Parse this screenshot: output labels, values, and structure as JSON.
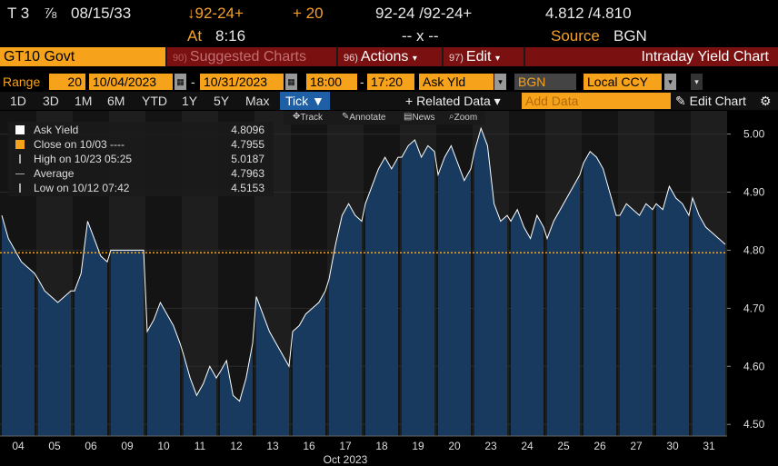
{
  "header": {
    "ticker_prefix": "T 3",
    "coupon_frac": "⅞",
    "maturity": "08/15/33",
    "price_change": "↓92-24+",
    "change_ticks": "+ 20",
    "bid_ask_price": "92-24 /92-24+",
    "bid_ask_yield": "4.812 /4.810",
    "time_label": "At",
    "time": "8:16",
    "spread": "-- x --",
    "source_label": "Source",
    "source": "BGN"
  },
  "titlebar": {
    "security": "GT10 Govt",
    "suggested_num": "90)",
    "suggested": "Suggested Charts",
    "actions_num": "96)",
    "actions": "Actions",
    "edit_num": "97)",
    "edit": "Edit",
    "chart_title": "Intraday Yield Chart"
  },
  "range_bar": {
    "range_label": "Range",
    "interval": "20",
    "start_date": "10/04/2023",
    "end_date": "10/31/2023",
    "start_time": "18:00",
    "end_time": "17:20",
    "field": "Ask Yld",
    "source": "BGN",
    "currency": "Local CCY"
  },
  "period_bar": {
    "periods": [
      "1D",
      "3D",
      "1M",
      "6M",
      "YTD",
      "1Y",
      "5Y",
      "Max"
    ],
    "tick": "Tick ▼",
    "related": "+ Related Data ▾",
    "add_data": "Add Data",
    "edit_chart": "✎ Edit Chart",
    "gear": "⚙"
  },
  "toolbar": {
    "track": "Track",
    "annotate": "Annotate",
    "news": "News",
    "zoom": "Zoom"
  },
  "legend": {
    "ask_yield": {
      "name": "Ask Yield",
      "value": "4.8096"
    },
    "close": {
      "name": "Close on 10/03 ----",
      "value": "4.7955"
    },
    "high": {
      "name": "High on 10/23 05:25",
      "value": "5.0187"
    },
    "average": {
      "name": "Average",
      "value": "4.7963"
    },
    "low": {
      "name": "Low on 10/12 07:42",
      "value": "4.5153"
    }
  },
  "colors": {
    "accent": "#f7a21b",
    "area_fill": "#173a5e",
    "line": "#ffffff",
    "title_bg": "#7a1010",
    "tick_button": "#1f5fa5"
  },
  "chart_data": {
    "type": "area",
    "title": "Intraday Yield Chart",
    "ylabel": "",
    "xlabel": "Oct 2023",
    "ylim": [
      4.48,
      5.04
    ],
    "yticks": [
      "4.50",
      "4.60",
      "4.70",
      "4.80",
      "4.90",
      "5.00"
    ],
    "last_value_label": "4.8096",
    "reference_line": {
      "name": "Close on 10/03",
      "value": 4.7955
    },
    "categories": [
      "04",
      "05",
      "06",
      "09",
      "10",
      "11",
      "12",
      "13",
      "16",
      "17",
      "18",
      "19",
      "20",
      "23",
      "24",
      "25",
      "26",
      "27",
      "30",
      "31"
    ],
    "x_title": "Oct 2023",
    "series": [
      {
        "name": "Ask Yield",
        "values_by_day": [
          [
            4.86,
            4.82,
            4.8,
            4.78,
            4.77,
            4.76
          ],
          [
            4.75,
            4.73,
            4.72,
            4.71,
            4.72,
            4.73
          ],
          [
            4.73,
            4.76,
            4.85,
            4.82,
            4.79,
            4.78
          ],
          [
            4.8,
            4.8,
            4.8,
            4.8,
            4.8,
            4.8
          ],
          [
            4.66,
            4.68,
            4.71,
            4.69,
            4.67,
            4.64
          ],
          [
            4.62,
            4.58,
            4.55,
            4.57,
            4.6,
            4.58
          ],
          [
            4.59,
            4.61,
            4.55,
            4.54,
            4.58,
            4.64
          ],
          [
            4.72,
            4.69,
            4.66,
            4.64,
            4.62,
            4.6
          ],
          [
            4.66,
            4.67,
            4.69,
            4.7,
            4.71,
            4.73
          ],
          [
            4.75,
            4.81,
            4.86,
            4.88,
            4.86,
            4.85
          ],
          [
            4.88,
            4.91,
            4.94,
            4.96,
            4.94,
            4.96
          ],
          [
            4.96,
            4.98,
            4.99,
            4.96,
            4.98,
            4.97
          ],
          [
            4.93,
            4.96,
            4.98,
            4.95,
            4.92,
            4.94
          ],
          [
            4.97,
            5.01,
            4.98,
            4.88,
            4.85,
            4.86
          ],
          [
            4.85,
            4.87,
            4.84,
            4.82,
            4.86,
            4.84
          ],
          [
            4.82,
            4.85,
            4.87,
            4.89,
            4.91,
            4.93
          ],
          [
            4.95,
            4.97,
            4.96,
            4.94,
            4.9,
            4.86
          ],
          [
            4.86,
            4.88,
            4.87,
            4.86,
            4.88,
            4.87
          ],
          [
            4.88,
            4.87,
            4.91,
            4.89,
            4.88,
            4.86
          ],
          [
            4.89,
            4.86,
            4.84,
            4.83,
            4.82,
            4.81
          ]
        ]
      }
    ]
  }
}
